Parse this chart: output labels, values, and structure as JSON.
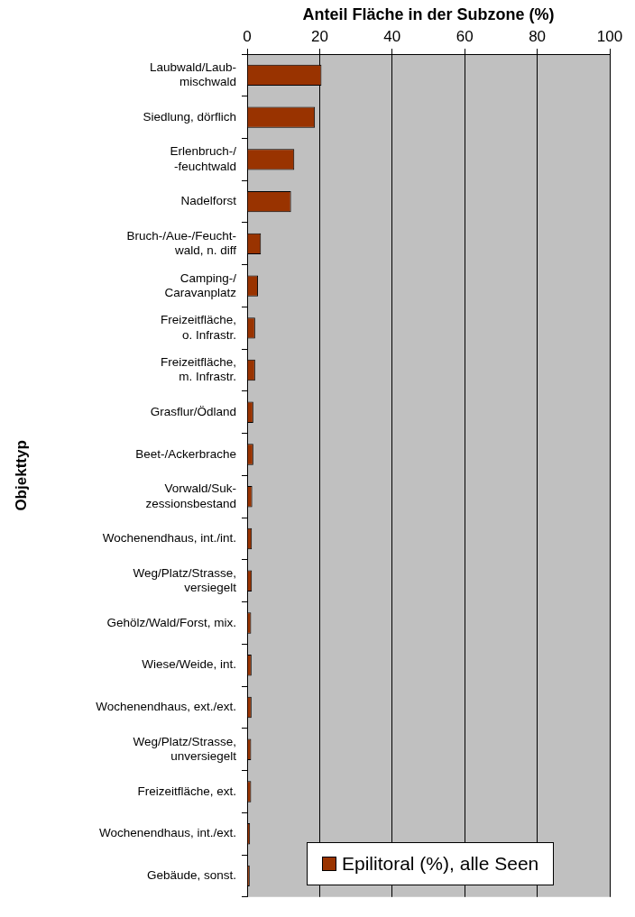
{
  "chart_data": {
    "type": "bar",
    "orientation": "horizontal",
    "title": "Anteil Fläche in der Subzone (%)",
    "ylabel": "Objekttyp",
    "categories": [
      "Laubwald/Laub-\nmischwald",
      "Siedlung, dörflich",
      "Erlenbruch-/\n-feuchtwald",
      "Nadelforst",
      "Bruch-/Aue-/Feucht-\nwald, n. diff",
      "Camping-/\nCaravanplatz",
      "Freizeitfläche,\no. Infrastr.",
      "Freizeitfläche,\nm. Infrastr.",
      "Grasflur/Ödland",
      "Beet-/Ackerbrache",
      "Vorwald/Suk-\nzessionsbestand",
      "Wochenendhaus, int./int.",
      "Weg/Platz/Strasse,\nversiegelt",
      "Gehölz/Wald/Forst, mix.",
      "Wiese/Weide, int.",
      "Wochenendhaus, ext./ext.",
      "Weg/Platz/Strasse,\nunversiegelt",
      "Freizeitfläche, ext.",
      "Wochenendhaus, int./ext.",
      "Gebäude, sonst."
    ],
    "series": [
      {
        "name": "Epilitoral (%), alle Seen",
        "color": "#993300",
        "values": [
          20.5,
          18.7,
          13.0,
          12.1,
          3.8,
          3.0,
          2.2,
          2.2,
          1.7,
          1.7,
          1.4,
          1.3,
          1.3,
          1.1,
          1.2,
          1.2,
          1.1,
          1.1,
          0.8,
          0.7
        ]
      }
    ],
    "xlim": [
      0,
      100
    ],
    "xticks": [
      0,
      20,
      40,
      60,
      80,
      100
    ],
    "grid": "x",
    "legend": "bottom right"
  }
}
